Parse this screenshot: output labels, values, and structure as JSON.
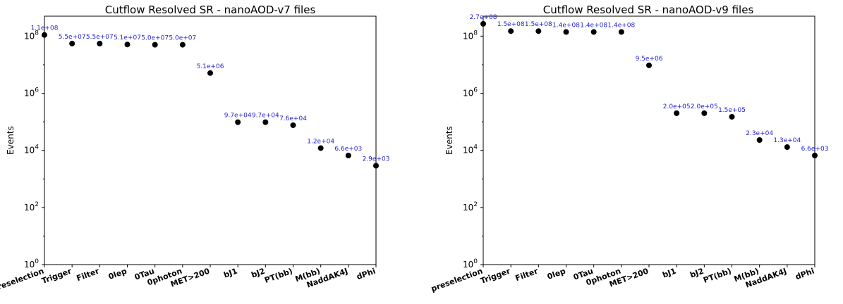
{
  "chart_data": [
    {
      "type": "scatter",
      "title": "Cutflow Resolved SR - nanoAOD-v7 files",
      "ylabel": "Events",
      "xlabel": "",
      "yscale": "log",
      "ylim": [
        1,
        500000000
      ],
      "yticks": [
        {
          "base": "10",
          "exp": "0",
          "value": 1
        },
        {
          "base": "10",
          "exp": "2",
          "value": 100
        },
        {
          "base": "10",
          "exp": "4",
          "value": 10000
        },
        {
          "base": "10",
          "exp": "6",
          "value": 1000000
        },
        {
          "base": "10",
          "exp": "8",
          "value": 100000000
        }
      ],
      "categories": [
        "preselection",
        "Trigger",
        "Filter",
        "0lep",
        "0Tau",
        "0photon",
        "MET>200",
        "bJ1",
        "bJ2",
        "PT(bb)",
        "M(bb)",
        "NaddAK4J",
        "dPhi"
      ],
      "values": [
        110000000,
        55000000,
        55000000,
        51000000,
        50000000,
        50000000,
        5100000,
        97000,
        97000,
        76000,
        12000,
        6600,
        2900
      ],
      "labels": [
        "1.1e+08",
        "5.5e+07",
        "5.5e+07",
        "5.1e+07",
        "5.0e+07",
        "5.0e+07",
        "5.1e+06",
        "9.7e+04",
        "9.7e+04",
        "7.6e+04",
        "1.2e+04",
        "6.6e+03",
        "2.9e+03"
      ],
      "marker_color": "#000000",
      "label_color": "#1f1fd6"
    },
    {
      "type": "scatter",
      "title": "Cutflow Resolved SR - nanoAOD-v9 files",
      "ylabel": "Events",
      "xlabel": "",
      "yscale": "log",
      "ylim": [
        1,
        500000000
      ],
      "yticks": [
        {
          "base": "10",
          "exp": "0",
          "value": 1
        },
        {
          "base": "10",
          "exp": "2",
          "value": 100
        },
        {
          "base": "10",
          "exp": "4",
          "value": 10000
        },
        {
          "base": "10",
          "exp": "6",
          "value": 1000000
        },
        {
          "base": "10",
          "exp": "8",
          "value": 100000000
        }
      ],
      "categories": [
        "preselection",
        "Trigger",
        "Filter",
        "0lep",
        "0Tau",
        "0photon",
        "MET>200",
        "bJ1",
        "bJ2",
        "PT(bb)",
        "M(bb)",
        "NaddAK4J",
        "dPhi"
      ],
      "values": [
        270000000,
        150000000,
        150000000,
        140000000,
        140000000,
        140000000,
        9500000,
        200000,
        200000,
        150000,
        23000,
        13000,
        6600
      ],
      "labels": [
        "2.7e+08",
        "1.5e+08",
        "1.5e+08",
        "1.4e+08",
        "1.4e+08",
        "1.4e+08",
        "9.5e+06",
        "2.0e+05",
        "2.0e+05",
        "1.5e+05",
        "2.3e+04",
        "1.3e+04",
        "6.6e+03"
      ],
      "marker_color": "#000000",
      "label_color": "#1f1fd6"
    }
  ]
}
